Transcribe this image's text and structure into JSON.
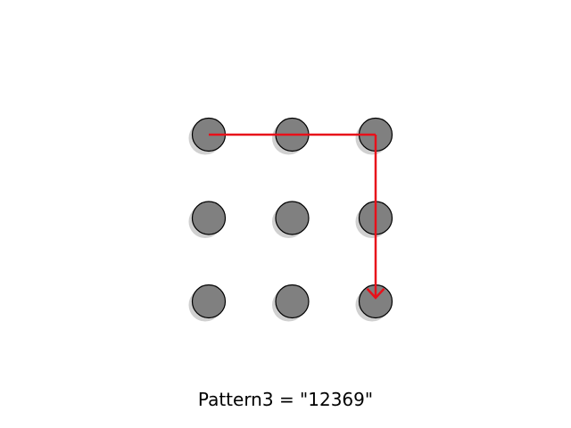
{
  "caption": "Pattern3 = \"12369\"",
  "grid": {
    "rows": 3,
    "cols": 3,
    "dot_color": "#808080",
    "dot_outline_color": "#000000",
    "shadow_color": "#d0d0d0"
  },
  "pattern": {
    "sequence": [
      1,
      2,
      3,
      6,
      9
    ],
    "path_color": "#e8101a",
    "ends_with_arrow": true
  }
}
